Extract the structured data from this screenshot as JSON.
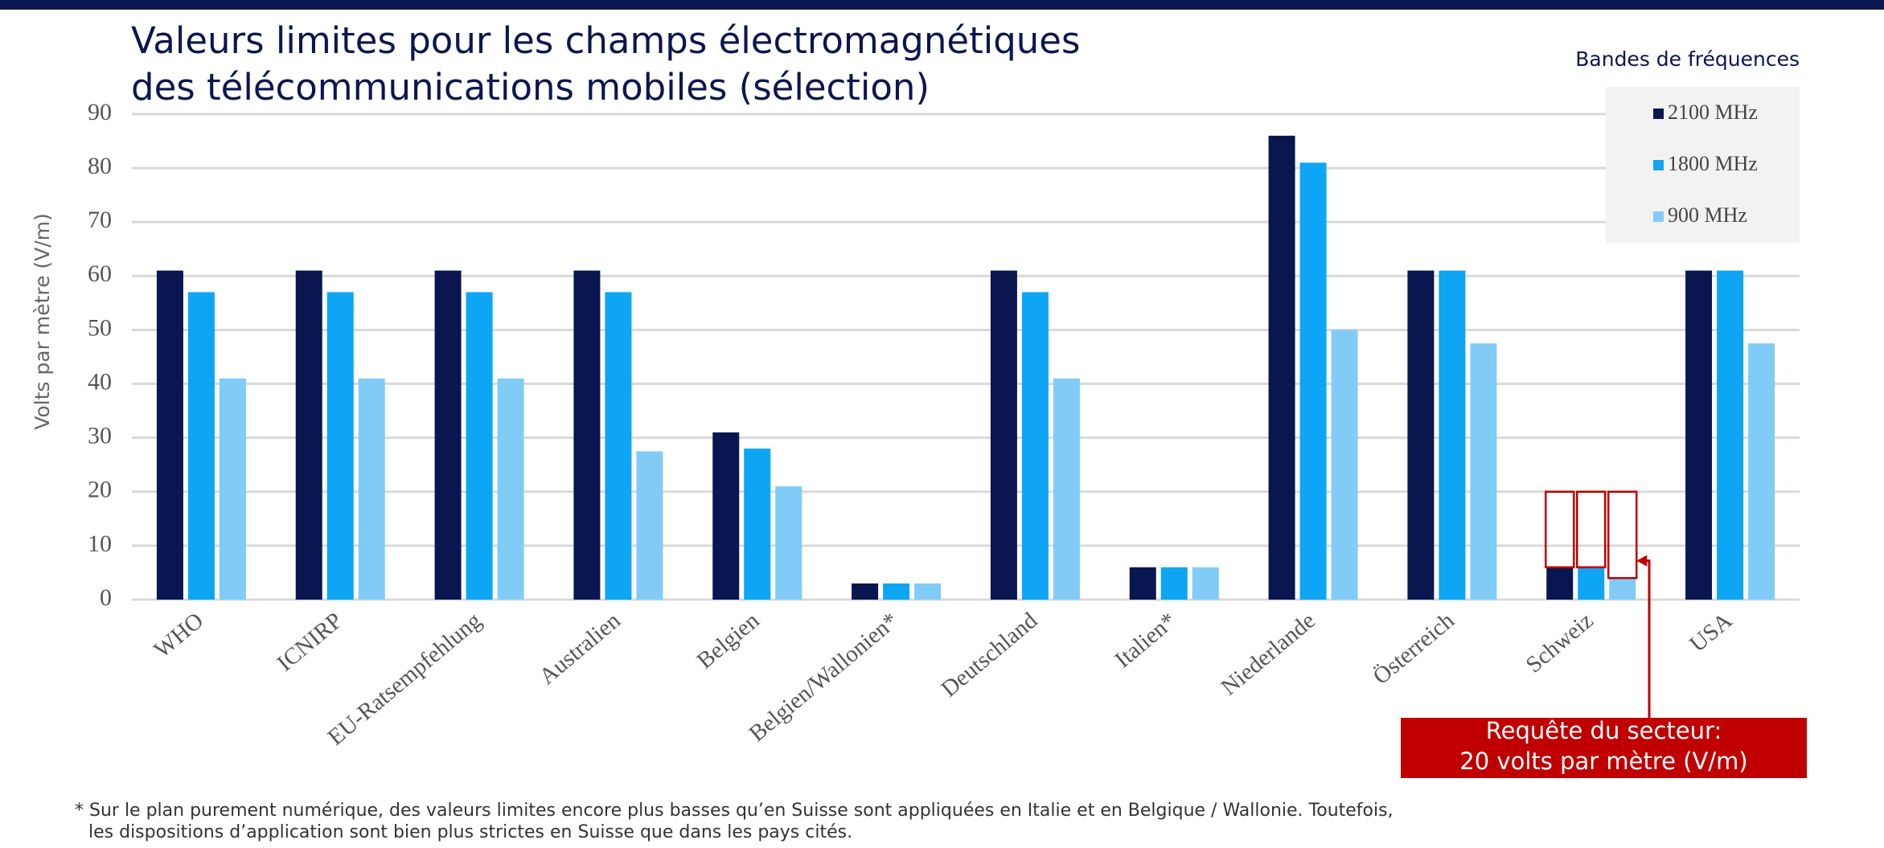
{
  "chart_data": {
    "type": "bar",
    "title": [
      "Valeurs limites pour les champs électromagnétiques",
      "des télécommunications mobiles (sélection)"
    ],
    "y_label": "Volts par mètre (V/m)",
    "legend_title": "Bandes de fréquences",
    "legend_position": "top-right",
    "grid": true,
    "categories": [
      "WHO",
      "ICNIRP",
      "EU-Ratsempfehlung",
      "Australien",
      "Belgien",
      "Belgien/Wallonien*",
      "Deutschland",
      "Italien*",
      "Niederlande",
      "Österreich",
      "Schweiz",
      "USA"
    ],
    "series": [
      {
        "name": "2100 MHz",
        "color": "#0a1650",
        "values": [
          61,
          61,
          61,
          61,
          31,
          3,
          61,
          6,
          86,
          61,
          6,
          61
        ]
      },
      {
        "name": "1800 MHz",
        "color": "#0ea5f5",
        "values": [
          57,
          57,
          57,
          57,
          28,
          3,
          57,
          6,
          81,
          61,
          6,
          61
        ]
      },
      {
        "name": "900 MHz",
        "color": "#80ccf7",
        "values": [
          41,
          41,
          41,
          27.5,
          21,
          3,
          41,
          6,
          50,
          47.5,
          4,
          47.5
        ]
      }
    ],
    "ylim": [
      0,
      90
    ],
    "yticks": [
      0,
      10,
      20,
      30,
      40,
      50,
      60,
      70,
      80,
      90
    ],
    "annotation": {
      "category": "Schweiz",
      "value": 20,
      "color": "#c00000",
      "text": [
        "Requête du secteur:",
        "20 volts par mètre (V/m)"
      ]
    },
    "footnote": [
      "* Sur le plan purement numérique, des valeurs limites encore plus basses qu’en Suisse sont appliquées en Italie et en Belgique / Wallonie. Toutefois,",
      "les dispositions d’application sont bien plus strictes en Suisse que dans les pays cités."
    ]
  }
}
